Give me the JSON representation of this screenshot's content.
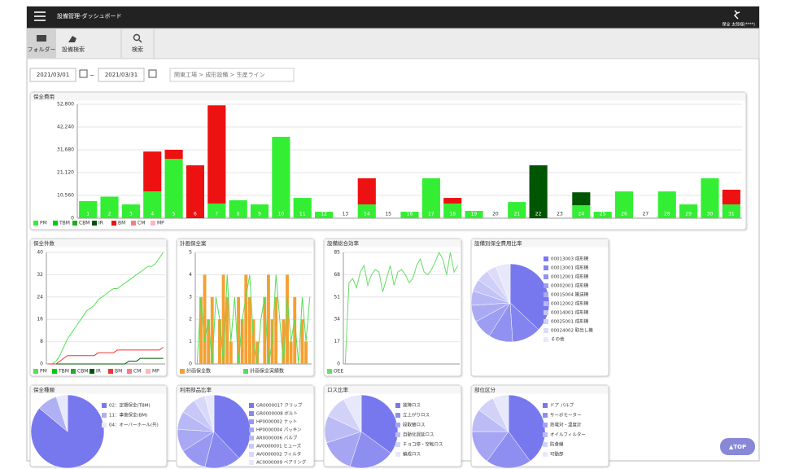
{
  "header": {
    "title": "設備管理-ダッシュボード",
    "user": "保全 太郎様(****)"
  },
  "toolbar": [
    "フォルダー",
    "設備検索",
    "検索"
  ],
  "filter": {
    "from": "2021/03/01",
    "sep": "~",
    "to": "2021/03/31",
    "path": "関東工場 > 成形設備 > 生産ライン"
  },
  "top_button": "▲TOP",
  "chart_data": [
    {
      "type": "bar",
      "stacked": true,
      "title": "保全費用",
      "categories": [
        "1",
        "2",
        "3",
        "4",
        "5",
        "6",
        "7",
        "8",
        "9",
        "10",
        "11",
        "12",
        "13",
        "14",
        "15",
        "16",
        "17",
        "18",
        "19",
        "20",
        "21",
        "22",
        "23",
        "24",
        "25",
        "26",
        "27",
        "28",
        "29",
        "30",
        "31"
      ],
      "ylim": [
        0,
        52800
      ],
      "yticks": [
        0,
        {
          "value": 10560,
          "label": "10,560"
        },
        {
          "value": 21120,
          "label": "21,120"
        },
        {
          "value": 31680,
          "label": "31,680"
        },
        {
          "value": 42240,
          "label": "42,240"
        },
        {
          "value": 52800,
          "label": "52,800"
        }
      ],
      "grid": true,
      "series": [
        {
          "name": "PM",
          "color": "#33ee33",
          "values": [
            7900,
            10000,
            6400,
            12400,
            27500,
            0,
            6800,
            8300,
            6400,
            37700,
            9400,
            3000,
            0,
            6400,
            0,
            3000,
            18500,
            6800,
            3400,
            0,
            7500,
            0,
            0,
            6000,
            3000,
            12400,
            0,
            12400,
            6400,
            18500,
            6400
          ]
        },
        {
          "name": "TBM",
          "color": "#00cc00",
          "values": [
            0,
            0,
            0,
            0,
            0,
            0,
            0,
            0,
            0,
            0,
            0,
            0,
            0,
            0,
            0,
            0,
            0,
            0,
            0,
            0,
            0,
            0,
            0,
            0,
            0,
            0,
            0,
            0,
            0,
            0,
            0
          ]
        },
        {
          "name": "CBM",
          "color": "#22aa22",
          "values": [
            0,
            0,
            0,
            0,
            0,
            0,
            0,
            0,
            0,
            0,
            0,
            0,
            0,
            0,
            0,
            0,
            0,
            0,
            0,
            0,
            0,
            0,
            0,
            0,
            0,
            0,
            0,
            0,
            0,
            0,
            0
          ]
        },
        {
          "name": "IR",
          "color": "#005500",
          "values": [
            0,
            0,
            0,
            0,
            0,
            0,
            0,
            0,
            0,
            0,
            0,
            0,
            0,
            0,
            0,
            0,
            0,
            0,
            0,
            0,
            0,
            24500,
            0,
            6000,
            0,
            0,
            0,
            0,
            0,
            0,
            0
          ]
        },
        {
          "name": "BM",
          "color": "#ee1111",
          "values": [
            0,
            0,
            0,
            18500,
            4200,
            24500,
            45500,
            0,
            0,
            0,
            0,
            0,
            0,
            12100,
            0,
            0,
            0,
            2600,
            0,
            0,
            0,
            0,
            0,
            0,
            0,
            0,
            0,
            0,
            0,
            0,
            6800
          ]
        },
        {
          "name": "CM",
          "color": "#f08080",
          "values": [
            0,
            0,
            0,
            0,
            0,
            0,
            0,
            0,
            0,
            0,
            0,
            0,
            0,
            0,
            0,
            0,
            0,
            0,
            0,
            0,
            0,
            0,
            0,
            0,
            0,
            0,
            0,
            0,
            0,
            0,
            0
          ]
        },
        {
          "name": "MP",
          "color": "#ffb6c1",
          "values": [
            0,
            0,
            0,
            0,
            0,
            0,
            0,
            0,
            0,
            0,
            0,
            0,
            0,
            0,
            0,
            0,
            0,
            0,
            0,
            0,
            0,
            0,
            0,
            0,
            0,
            0,
            0,
            0,
            0,
            0,
            0
          ]
        }
      ]
    },
    {
      "type": "line",
      "title": "保全件数",
      "ylim": [
        0,
        40
      ],
      "yticks": [
        0,
        8,
        16,
        24,
        32,
        40
      ],
      "grid": true,
      "series": [
        {
          "name": "PM",
          "color": "#55dd55",
          "values": [
            0,
            0,
            1,
            3,
            6,
            9,
            11,
            13,
            15,
            17,
            19,
            20,
            21,
            23,
            24,
            25,
            26,
            27,
            27,
            28,
            29,
            30,
            31,
            32,
            33,
            34,
            35,
            35,
            36,
            38,
            40
          ]
        },
        {
          "name": "TBM",
          "color": "#00cc00",
          "values": [
            null,
            null,
            null,
            null,
            null,
            null,
            null,
            null,
            null,
            null,
            null,
            null,
            null,
            null,
            null,
            null,
            null,
            null,
            null,
            null,
            null,
            null,
            null,
            null,
            null,
            null,
            null,
            null,
            null,
            null,
            null
          ]
        },
        {
          "name": "CBM",
          "color": "#22aa22",
          "values": [
            null,
            null,
            null,
            null,
            null,
            null,
            null,
            null,
            null,
            null,
            null,
            null,
            null,
            null,
            null,
            null,
            null,
            null,
            null,
            null,
            null,
            null,
            null,
            null,
            null,
            null,
            null,
            null,
            null,
            null,
            null
          ]
        },
        {
          "name": "IR",
          "color": "#005500",
          "values": [
            0,
            0,
            0,
            0,
            0,
            0,
            0,
            0,
            0,
            0,
            0,
            0,
            0,
            0,
            0,
            0,
            0,
            0,
            0,
            0,
            0,
            1,
            1,
            1,
            2,
            2,
            2,
            2,
            2,
            2,
            2
          ]
        },
        {
          "name": "BM",
          "color": "#ee3333",
          "values": [
            0,
            0,
            0,
            1,
            2,
            3,
            3,
            3,
            3,
            3,
            3,
            3,
            3,
            4,
            4,
            4,
            4,
            4,
            5,
            5,
            5,
            5,
            5,
            5,
            5,
            5,
            5,
            5,
            5,
            5,
            6
          ]
        },
        {
          "name": "CM",
          "color": "#f08080",
          "values": [
            null,
            null,
            null,
            null,
            null,
            null,
            null,
            null,
            null,
            null,
            null,
            null,
            null,
            null,
            null,
            null,
            null,
            null,
            null,
            null,
            null,
            null,
            null,
            null,
            null,
            null,
            null,
            null,
            null,
            null,
            null
          ]
        },
        {
          "name": "MP",
          "color": "#ffb6c1",
          "values": [
            null,
            null,
            null,
            null,
            null,
            null,
            null,
            null,
            null,
            null,
            null,
            null,
            null,
            null,
            null,
            null,
            null,
            null,
            null,
            null,
            null,
            null,
            null,
            null,
            null,
            null,
            null,
            null,
            null,
            null,
            null
          ]
        }
      ]
    },
    {
      "type": "bar",
      "title": "計画保全案",
      "ylim": [
        0,
        5
      ],
      "yticks": [
        0,
        1,
        2,
        3,
        4,
        5
      ],
      "grid": true,
      "series": [
        {
          "name": "計画保全数",
          "color": "#f5a030",
          "values": [
            0,
            3,
            4,
            2,
            3,
            0,
            2,
            4,
            3,
            1,
            0,
            3,
            2,
            4,
            3,
            2,
            1,
            0,
            3,
            4,
            2,
            3,
            0,
            2,
            4,
            1,
            3,
            0,
            2,
            1,
            0
          ]
        },
        {
          "name": "計画保全実績数",
          "color": "#55dd55",
          "type": "line",
          "values": [
            0,
            3,
            1,
            2,
            0,
            3,
            2,
            0,
            4,
            1,
            3,
            0,
            2,
            3,
            4,
            1,
            0,
            2,
            3,
            0,
            1,
            4,
            2,
            0,
            3,
            1,
            2,
            0,
            3,
            1,
            3
          ]
        }
      ]
    },
    {
      "type": "line",
      "title": "設備総合効率",
      "ylim": [
        0,
        85
      ],
      "yticks": [
        0,
        17,
        34,
        51,
        68,
        85
      ],
      "grid": true,
      "series": [
        {
          "name": "OEE",
          "color": "#66dd66",
          "values": [
            0,
            62,
            65,
            58,
            70,
            75,
            60,
            68,
            72,
            70,
            55,
            65,
            75,
            60,
            70,
            72,
            68,
            62,
            65,
            75,
            80,
            70,
            68,
            72,
            78,
            85,
            80,
            68,
            85,
            70,
            75
          ]
        }
      ]
    },
    {
      "type": "pie",
      "title": "設備別保全費用比率",
      "categories": [
        "00013003 成形機",
        "00013001 成形機",
        "00012001 成形機",
        "00002001 成形機",
        "00015004 搬送機",
        "00012002 成形機",
        "00014001 成形機",
        "00025001 成形機",
        "00024002 取出し機",
        "その他"
      ],
      "values": [
        37,
        12,
        10,
        8,
        7,
        6,
        5,
        5,
        4,
        6
      ]
    },
    {
      "type": "pie",
      "title": "保全種類",
      "categories": [
        "02：定期保全(TBM)",
        "11：事後保全(BM)",
        "04：オーバーホール(共)"
      ],
      "values": [
        86,
        9,
        5
      ]
    },
    {
      "type": "pie",
      "title": "利用部品比率",
      "categories": [
        "GR0000017 クリップ",
        "GR0000008 ボルト",
        "HP0000002 ナット",
        "HP0000004 パッキン",
        "AR0000006 バルブ",
        "AV0000001 ヒューズ",
        "AV0000002 フィルタ",
        "AC0000009 ベアリング"
      ],
      "values": [
        38,
        16,
        12,
        10,
        8,
        7,
        5,
        4
      ]
    },
    {
      "type": "pie",
      "title": "ロス比率",
      "categories": [
        "故障ロス",
        "立上がりロス",
        "段取替ロス",
        "自動化遅延ロス",
        "チョコ停・空転ロス",
        "編成ロス"
      ],
      "values": [
        35,
        20,
        15,
        12,
        10,
        8
      ]
    },
    {
      "type": "pie",
      "title": "部位区分",
      "categories": [
        "ドア バルブ",
        "サーボモーター",
        "熱電対・温度計",
        "オイルフィルター",
        "防食線",
        "可動部"
      ],
      "values": [
        40,
        20,
        15,
        10,
        8,
        7
      ]
    }
  ]
}
